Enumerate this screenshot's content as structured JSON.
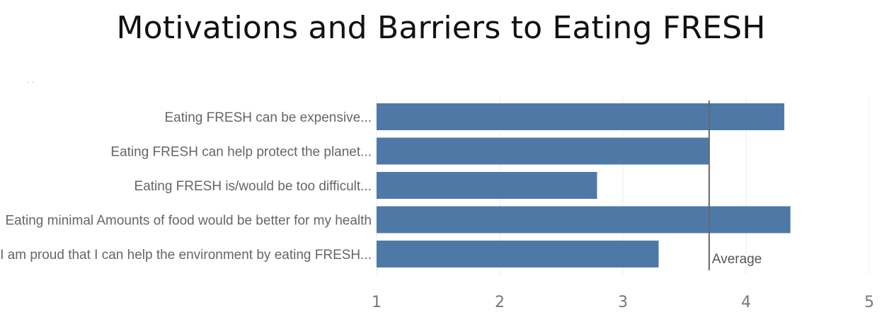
{
  "page": {
    "title": "Motivations and Barriers to Eating FRESH"
  },
  "chart_data": {
    "type": "bar",
    "orientation": "horizontal",
    "title": "Motivations and Barriers to Eating FRESH",
    "categories": [
      "Eating FRESH can be expensive...",
      "Eating FRESH can help protect the planet...",
      "Eating FRESH is/would be too difficult...",
      "Eating minimal Amounts of food would be better for my health",
      "I am proud that I can help the environment by eating FRESH..."
    ],
    "values": [
      4.31,
      3.7,
      2.79,
      4.36,
      3.29
    ],
    "xlim": [
      1,
      5
    ],
    "xticks": [
      "1",
      "2",
      "3",
      "4",
      "5"
    ],
    "xlabel": "",
    "ylabel": "",
    "grid": "vertical",
    "bar_color": "#4E79A7",
    "reference_line": {
      "label": "Average",
      "value": 3.7,
      "color": "#666666"
    }
  }
}
